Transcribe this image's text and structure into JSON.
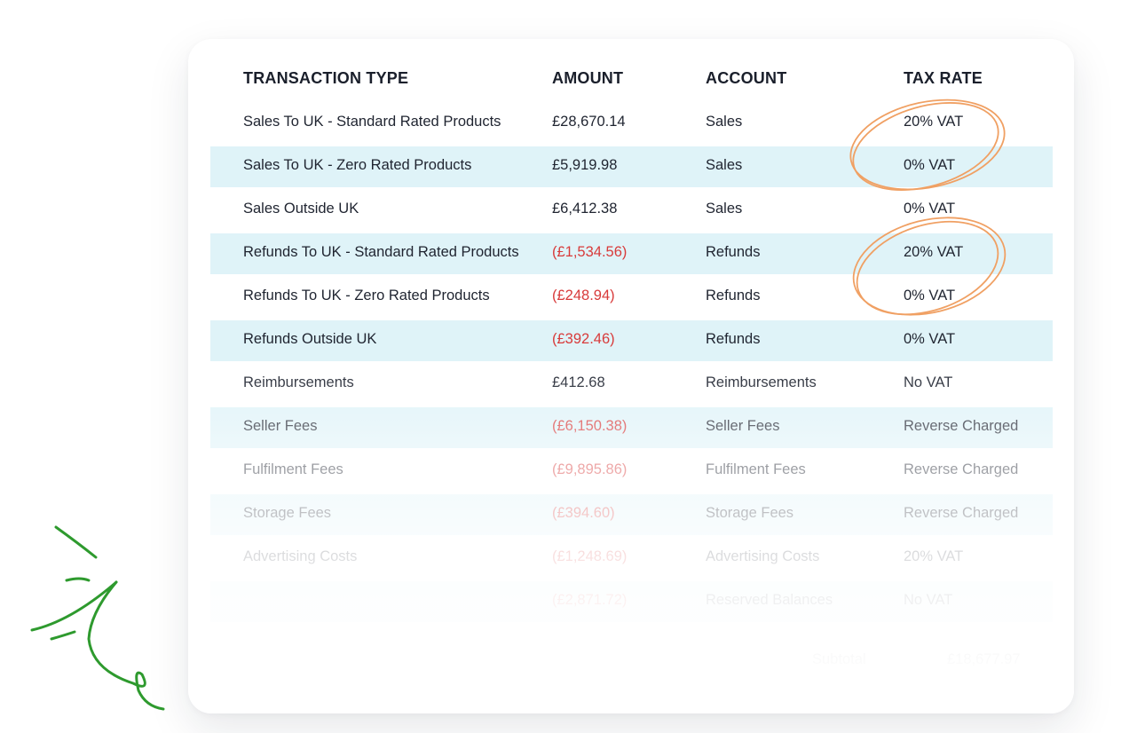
{
  "table": {
    "headers": [
      "TRANSACTION TYPE",
      "AMOUNT",
      "ACCOUNT",
      "TAX RATE"
    ],
    "rows": [
      {
        "type": "Sales To UK - Standard Rated Products",
        "amount": "£28,670.14",
        "account": "Sales",
        "tax": "20% VAT",
        "negative": false
      },
      {
        "type": "Sales To UK - Zero Rated Products",
        "amount": "£5,919.98",
        "account": "Sales",
        "tax": "0% VAT",
        "negative": false
      },
      {
        "type": "Sales Outside UK",
        "amount": "£6,412.38",
        "account": "Sales",
        "tax": "0% VAT",
        "negative": false
      },
      {
        "type": "Refunds To UK - Standard Rated Products",
        "amount": "(£1,534.56)",
        "account": "Refunds",
        "tax": "20% VAT",
        "negative": true
      },
      {
        "type": "Refunds To UK - Zero Rated Products",
        "amount": "(£248.94)",
        "account": "Refunds",
        "tax": "0% VAT",
        "negative": true
      },
      {
        "type": "Refunds Outside UK",
        "amount": "(£392.46)",
        "account": "Refunds",
        "tax": "0% VAT",
        "negative": true
      },
      {
        "type": "Reimbursements",
        "amount": "£412.68",
        "account": "Reimbursements",
        "tax": "No VAT",
        "negative": false
      },
      {
        "type": "Seller Fees",
        "amount": "(£6,150.38)",
        "account": "Seller Fees",
        "tax": "Reverse Charged",
        "negative": true
      },
      {
        "type": "Fulfilment Fees",
        "amount": "(£9,895.86)",
        "account": "Fulfilment Fees",
        "tax": "Reverse Charged",
        "negative": true
      },
      {
        "type": "Storage Fees",
        "amount": "(£394.60)",
        "account": "Storage Fees",
        "tax": "Reverse Charged",
        "negative": true
      },
      {
        "type": "Advertising Costs",
        "amount": "(£1,248.69)",
        "account": "Advertising Costs",
        "tax": "20% VAT",
        "negative": true
      },
      {
        "type": "",
        "amount": "(£2,871.72)",
        "account": "Reserved Balances",
        "tax": "No VAT",
        "negative": true
      }
    ],
    "subtotal_label": "Subtotal",
    "subtotal_value": "£18,677.97"
  },
  "colors": {
    "stripe": "#dff3f8",
    "negative": "#d83b3b",
    "highlight_circle": "#f0a063",
    "doodle": "#2e9a2e"
  }
}
